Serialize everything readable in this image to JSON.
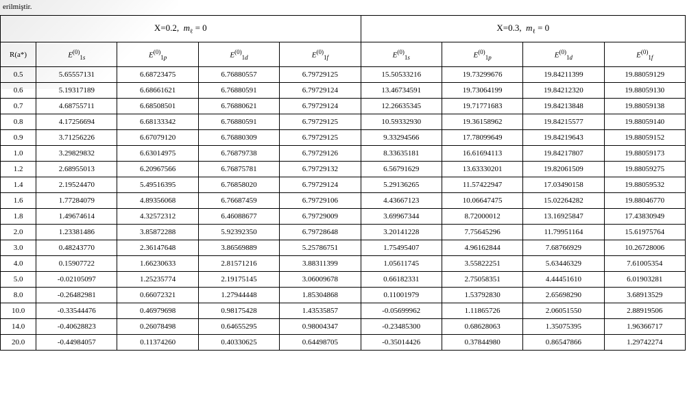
{
  "caption": "erilmiştir.",
  "section_headers": {
    "left": "X=0.2,  mℓ = 0",
    "right": "X=0.3,  mℓ = 0"
  },
  "first_col_header": "R(a*)",
  "col_headers": [
    "E1s(0)",
    "E1p(0)",
    "E1d(0)",
    "E1f(0)",
    "E1s(0)",
    "E1p(0)",
    "E1d(0)",
    "E1f(0)"
  ],
  "rows": [
    {
      "r": "0.5",
      "v": [
        "5.65557131",
        "6.68723475",
        "6.76880557",
        "6.79729125",
        "15.50533216",
        "19.73299676",
        "19.84211399",
        "19.88059129"
      ]
    },
    {
      "r": "0.6",
      "v": [
        "5.19317189",
        "6.68661621",
        "6.76880591",
        "6.79729124",
        "13.46734591",
        "19.73064199",
        "19.84212320",
        "19.88059130"
      ]
    },
    {
      "r": "0.7",
      "v": [
        "4.68755711",
        "6.68508501",
        "6.76880621",
        "6.79729124",
        "12.26635345",
        "19.71771683",
        "19.84213848",
        "19.88059138"
      ]
    },
    {
      "r": "0.8",
      "v": [
        "4.17256694",
        "6.68133342",
        "6.76880591",
        "6.79729125",
        "10.59332930",
        "19.36158962",
        "19.84215577",
        "19.88059140"
      ]
    },
    {
      "r": "0.9",
      "v": [
        "3.71256226",
        "6.67079120",
        "6.76880309",
        "6.79729125",
        "9.33294566",
        "17.78099649",
        "19.84219643",
        "19.88059152"
      ]
    },
    {
      "r": "1.0",
      "v": [
        "3.29829832",
        "6.63014975",
        "6.76879738",
        "6.79729126",
        "8.33635181",
        "16.61694113",
        "19.84217807",
        "19.88059173"
      ]
    },
    {
      "r": "1.2",
      "v": [
        "2.68955013",
        "6.20967566",
        "6.76875781",
        "6.79729132",
        "6.56791629",
        "13.63330201",
        "19.82061509",
        "19.88059275"
      ]
    },
    {
      "r": "1.4",
      "v": [
        "2.19524470",
        "5.49516395",
        "6.76858020",
        "6.79729124",
        "5.29136265",
        "11.57422947",
        "17.03490158",
        "19.88059532"
      ]
    },
    {
      "r": "1.6",
      "v": [
        "1.77284079",
        "4.89356068",
        "6.76687459",
        "6.79729106",
        "4.43667123",
        "10.06647475",
        "15.02264282",
        "19.88046770"
      ]
    },
    {
      "r": "1.8",
      "v": [
        "1.49674614",
        "4.32572312",
        "6.46088677",
        "6.79729009",
        "3.69967344",
        "8.72000012",
        "13.16925847",
        "17.43830949"
      ]
    },
    {
      "r": "2.0",
      "v": [
        "1.23381486",
        "3.85872288",
        "5.92392350",
        "6.79728648",
        "3.20141228",
        "7.75645296",
        "11.79951164",
        "15.61975764"
      ]
    },
    {
      "r": "3.0",
      "v": [
        "0.48243770",
        "2.36147648",
        "3.86569889",
        "5.25786751",
        "1.75495407",
        "4.96162844",
        "7.68766929",
        "10.26728006"
      ]
    },
    {
      "r": "4.0",
      "v": [
        "0.15907722",
        "1.66230633",
        "2.81571216",
        "3.88311399",
        "1.05611745",
        "3.55822251",
        "5.63446329",
        "7.61005354"
      ]
    },
    {
      "r": "5.0",
      "v": [
        "-0.02105097",
        "1.25235774",
        "2.19175145",
        "3.06009678",
        "0.66182331",
        "2.75058351",
        "4.44451610",
        "6.01903281"
      ]
    },
    {
      "r": "8.0",
      "v": [
        "-0.26482981",
        "0.66072321",
        "1.27944448",
        "1.85304868",
        "0.11001979",
        "1.53792830",
        "2.65698290",
        "3.68913529"
      ]
    },
    {
      "r": "10.0",
      "v": [
        "-0.33544476",
        "0.46979698",
        "0.98175428",
        "1.43535857",
        "-0.05699962",
        "1.11865726",
        "2.06051550",
        "2.88919506"
      ]
    },
    {
      "r": "14.0",
      "v": [
        "-0.40628823",
        "0.26078498",
        "0.64655295",
        "0.98004347",
        "-0.23485300",
        "0.68628063",
        "1.35075395",
        "1.96366717"
      ]
    },
    {
      "r": "20.0",
      "v": [
        "-0.44984057",
        "0.11374260",
        "0.40330625",
        "0.64498705",
        "-0.35014426",
        "0.37844980",
        "0.86547866",
        "1.29742274"
      ]
    }
  ],
  "styles": {
    "background": "#ffffff",
    "border_color": "#000000",
    "font": "Times New Roman",
    "base_fontsize": 11,
    "header_fontsize": 13
  }
}
